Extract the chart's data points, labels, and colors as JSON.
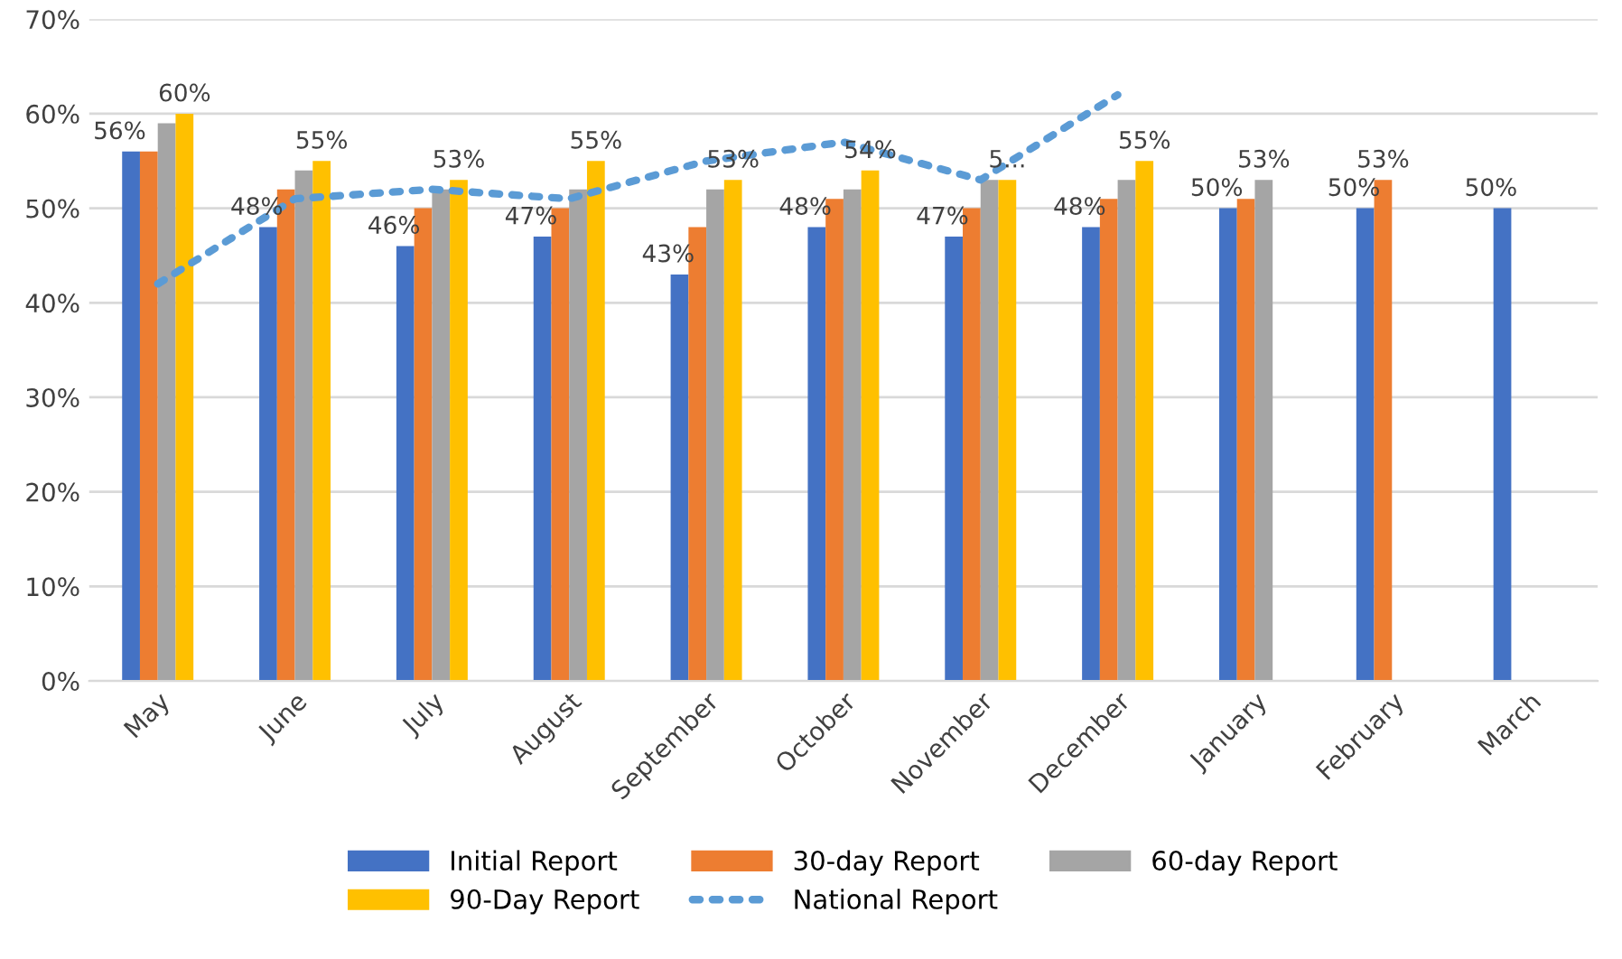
{
  "chart_data": {
    "type": "bar",
    "categories": [
      "May",
      "June",
      "July",
      "August",
      "September",
      "October",
      "November",
      "December",
      "January",
      "February",
      "March"
    ],
    "series": [
      {
        "name": "Initial Report",
        "color": "#4472c4",
        "values": [
          56,
          48,
          46,
          47,
          43,
          48,
          47,
          48,
          50,
          50,
          50
        ],
        "value_labels": [
          "56%",
          "48%",
          "46%",
          "47%",
          "43%",
          "48%",
          "47%",
          "48%",
          "50%",
          "50%",
          "50%"
        ]
      },
      {
        "name": "30-day Report",
        "color": "#ed7d31",
        "values": [
          56,
          52,
          50,
          50,
          48,
          51,
          50,
          51,
          51,
          53,
          null
        ],
        "value_labels": [
          null,
          null,
          null,
          null,
          null,
          null,
          null,
          null,
          null,
          "53%",
          null
        ]
      },
      {
        "name": "60-day Report",
        "color": "#a5a5a5",
        "values": [
          59,
          54,
          52,
          52,
          52,
          52,
          53,
          53,
          53,
          null,
          null
        ],
        "value_labels": [
          null,
          null,
          null,
          null,
          null,
          null,
          null,
          null,
          "53%",
          null,
          null
        ]
      },
      {
        "name": "90-Day Report",
        "color": "#ffc000",
        "values": [
          60,
          55,
          53,
          55,
          53,
          54,
          53,
          55,
          null,
          null,
          null
        ],
        "value_labels": [
          "60%",
          "55%",
          "53%",
          "55%",
          "53%",
          "54%",
          "5...",
          "55%",
          null,
          null,
          null
        ]
      },
      {
        "name": "National Report",
        "type": "line",
        "color": "#5b9bd5",
        "line_style": "dotted",
        "values": [
          42,
          51,
          52,
          51,
          55,
          57,
          53,
          62,
          null,
          null,
          null
        ]
      }
    ],
    "ylim": [
      0,
      70
    ],
    "yticks": [
      {
        "value": 0,
        "label": "0%"
      },
      {
        "value": 10,
        "label": "10%"
      },
      {
        "value": 20,
        "label": "20%"
      },
      {
        "value": 30,
        "label": "30%"
      },
      {
        "value": 40,
        "label": "40%"
      },
      {
        "value": 50,
        "label": "50%"
      },
      {
        "value": 60,
        "label": "60%"
      },
      {
        "value": 70,
        "label": "70%"
      }
    ],
    "grid": "y",
    "legend": "bottom"
  }
}
